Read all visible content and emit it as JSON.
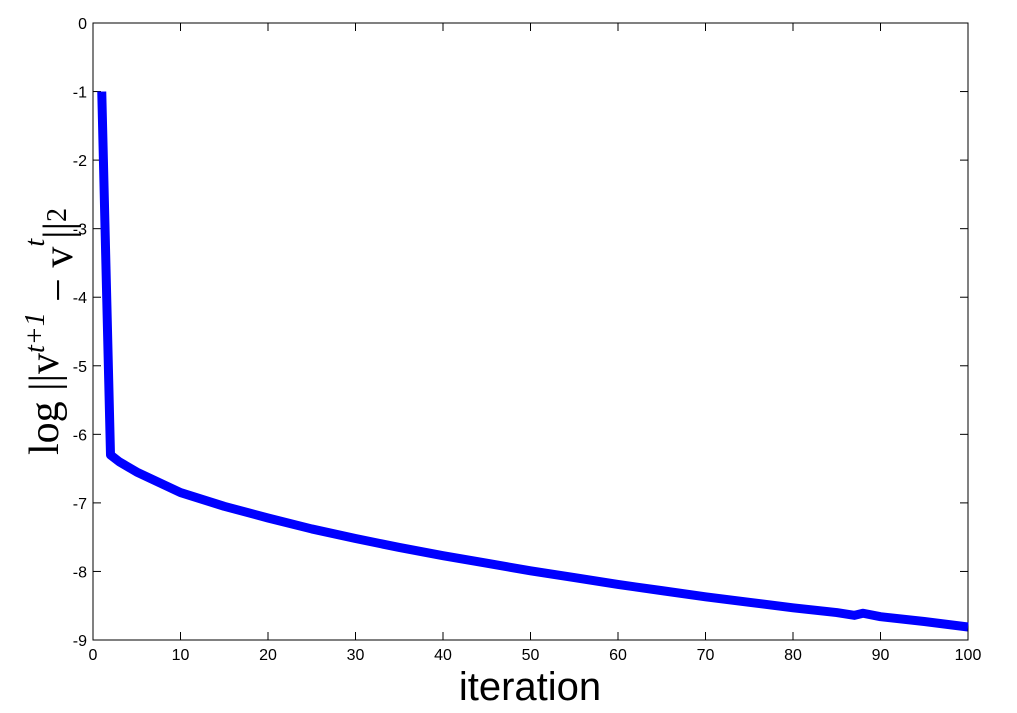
{
  "chart_data": {
    "type": "line",
    "xlabel": "iteration",
    "ylabel": [
      "log ||v",
      "t+1",
      " − v",
      "t",
      "||",
      "2"
    ],
    "x": [
      1,
      2,
      3,
      5,
      10,
      15,
      20,
      25,
      30,
      35,
      40,
      45,
      50,
      55,
      60,
      65,
      70,
      75,
      80,
      85,
      87,
      88,
      90,
      95,
      100
    ],
    "series": [
      {
        "color": "#0000ff",
        "values": [
          -1,
          -6.3,
          -6.4,
          -6.55,
          -6.85,
          -7.05,
          -7.22,
          -7.38,
          -7.52,
          -7.65,
          -7.77,
          -7.88,
          -7.99,
          -8.09,
          -8.19,
          -8.28,
          -8.37,
          -8.45,
          -8.53,
          -8.6,
          -8.64,
          -8.61,
          -8.66,
          -8.73,
          -8.81
        ]
      }
    ],
    "xlim": [
      0,
      100
    ],
    "xticks": [
      0,
      10,
      20,
      30,
      40,
      50,
      60,
      70,
      80,
      90,
      100
    ],
    "ylim": [
      -9,
      0
    ],
    "yticks": [
      -9,
      -8,
      -7,
      -6,
      -5,
      -4,
      -3,
      -2,
      -1,
      0
    ],
    "grid": false
  }
}
